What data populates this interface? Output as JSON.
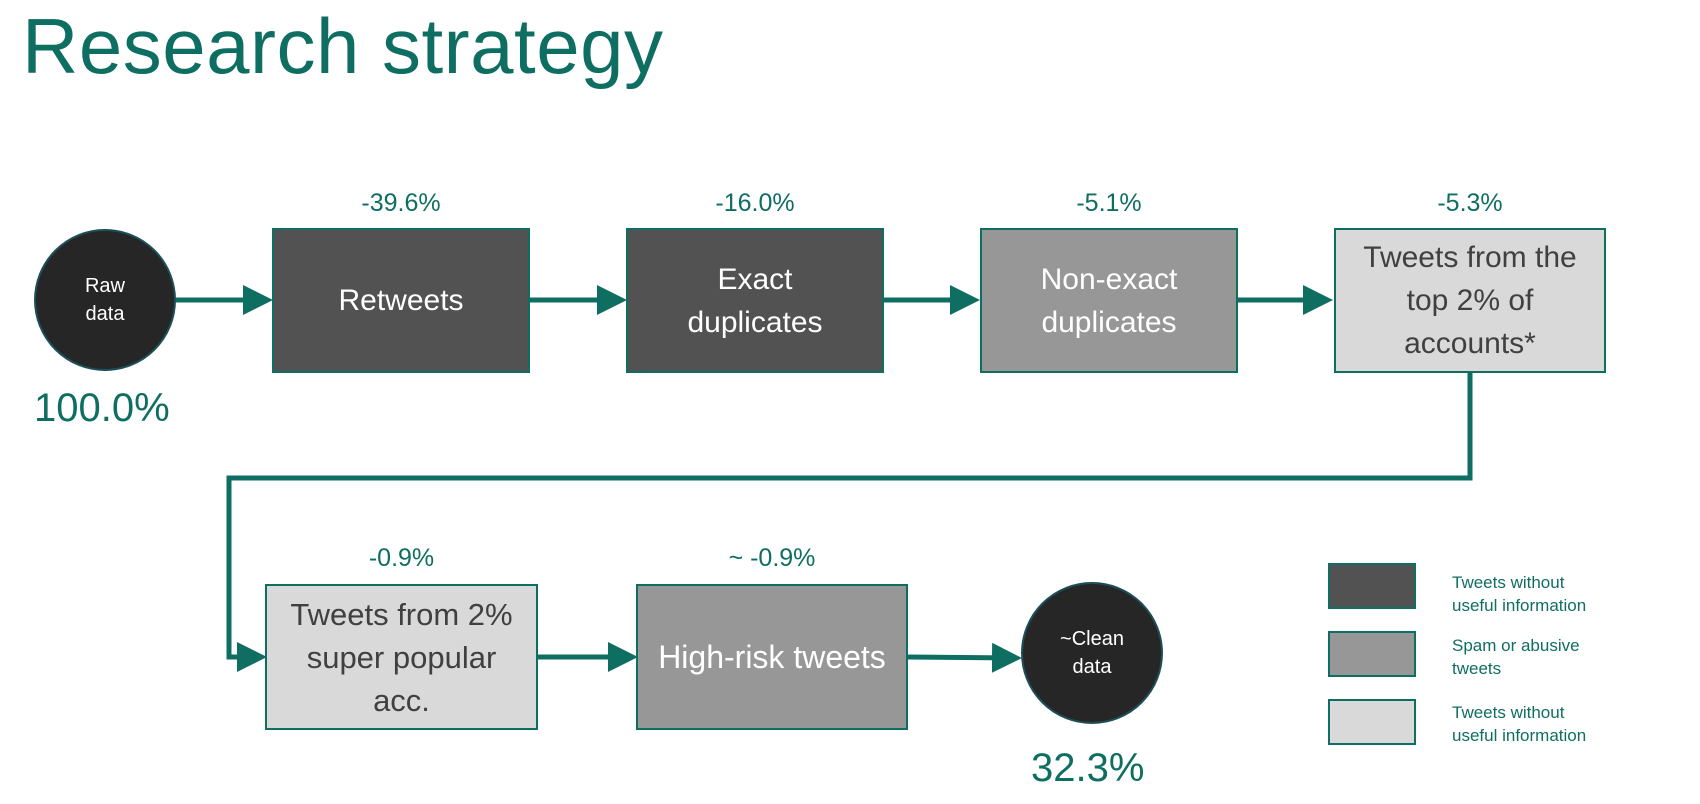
{
  "slide": {
    "title": "Research strategy"
  },
  "colors": {
    "accent": "#0f6e62",
    "circle": "#262626",
    "dark_box": "#525252",
    "mid_box": "#979797",
    "light_box": "#d9d9d9"
  },
  "flow": {
    "start": {
      "label": "Raw\ndata",
      "value": "100.0%"
    },
    "steps": [
      {
        "label": "Retweets",
        "change": "-39.6%",
        "category": "Tweets without useful information"
      },
      {
        "label": "Exact\nduplicates",
        "change": "-16.0%",
        "category": "Tweets without useful information"
      },
      {
        "label": "Non-exact\nduplicates",
        "change": "-5.1%",
        "category": "Spam or abusive tweets"
      },
      {
        "label": "Tweets from the\ntop 2% of\naccounts*",
        "change": "-5.3%",
        "category": "Tweets without useful information"
      },
      {
        "label": "Tweets from 2%\nsuper popular\nacc.",
        "change": "-0.9%",
        "category": "Tweets without useful information"
      },
      {
        "label": "High-risk tweets",
        "change": "~ -0.9%",
        "category": "Spam or abusive tweets"
      }
    ],
    "end": {
      "label": "~Clean\ndata",
      "value": "32.3%"
    }
  },
  "legend": [
    {
      "label": "Tweets without\nuseful information",
      "swatch": "dark"
    },
    {
      "label": "Spam or abusive\ntweets",
      "swatch": "mid"
    },
    {
      "label": "Tweets without\nuseful information",
      "swatch": "light"
    }
  ]
}
